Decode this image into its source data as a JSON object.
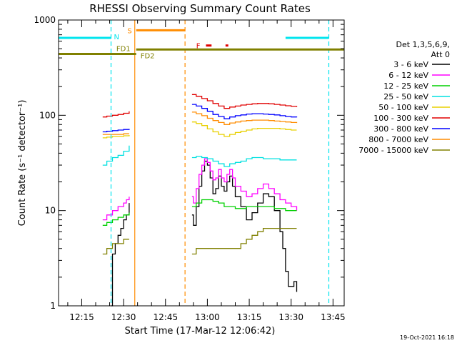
{
  "colors": {
    "background": "#ffffff",
    "axis": "#000000",
    "cyan": "#00e5ee",
    "orange": "#ff8c00",
    "olive": "#808000",
    "red": "#e00000",
    "e1": "#000000",
    "e2": "#ff00ff",
    "e3": "#00d000",
    "e4": "#00e0e0",
    "e5": "#e8d000",
    "e6": "#e00000",
    "e7": "#0000ff",
    "e8": "#ff8c00",
    "e9": "#808000"
  },
  "chart_data": {
    "type": "line",
    "title": "RHESSI Observing Summary Count Rates",
    "xlabel": "Start Time (17-Mar-12 12:06:42)",
    "ylabel": "Count Rate (s⁻¹ detector⁻¹)",
    "footer": "19-Oct-2021 16:18",
    "x_range": [
      "12:06:42",
      "13:49:00"
    ],
    "ylim": [
      1,
      1000
    ],
    "y_scale": "log",
    "x_ticks": [
      "12:15",
      "12:30",
      "12:45",
      "13:00",
      "13:15",
      "13:30",
      "13:45"
    ],
    "y_ticks": [
      {
        "value": 1,
        "label": "1"
      },
      {
        "value": 10,
        "label": "10"
      },
      {
        "value": 100,
        "label": "100"
      },
      {
        "value": 1000,
        "label": "1000"
      }
    ],
    "legend": {
      "position": "right",
      "header_line1": "Det 1,3,5,6,9,",
      "header_line2": "Att 0",
      "entries": [
        {
          "label": "3 - 6 keV",
          "color": "#000000"
        },
        {
          "label": "6 - 12 keV",
          "color": "#ff00ff"
        },
        {
          "label": "12 - 25 keV",
          "color": "#00d000"
        },
        {
          "label": "25 - 50 keV",
          "color": "#00e0e0"
        },
        {
          "label": "50 - 100 keV",
          "color": "#e8d000"
        },
        {
          "label": "100 - 300 keV",
          "color": "#e00000"
        },
        {
          "label": "300 - 800 keV",
          "color": "#0000ff"
        },
        {
          "label": "800 - 7000 keV",
          "color": "#ff8c00"
        },
        {
          "label": "7000 - 15000 keV",
          "color": "#808000"
        }
      ]
    },
    "flags": [
      {
        "label": "N",
        "color": "#00e5ee",
        "segments": [
          [
            "12:06:42",
            "12:25:30"
          ],
          [
            "13:28:00",
            "13:43:30"
          ]
        ],
        "value": 650
      },
      {
        "label": "S",
        "color": "#ff8c00",
        "segments": [
          [
            "12:34:30",
            "12:52:00"
          ]
        ],
        "value": 780
      },
      {
        "label": "F",
        "color": "#e00000",
        "segments": [
          [
            "12:59:30",
            "13:01:30"
          ],
          [
            "13:06:30",
            "13:07:30"
          ]
        ],
        "value": 540
      },
      {
        "label": "FD1",
        "color": "#808000",
        "segments": [
          [
            "12:06:42",
            "12:34:30"
          ]
        ],
        "value": 440
      },
      {
        "label": "FD2",
        "color": "#808000",
        "segments": [
          [
            "12:34:30",
            "13:49:00"
          ]
        ],
        "value": 490
      }
    ],
    "markers": [
      {
        "time": "12:25:30",
        "color": "#00e5ee",
        "style": "dashed"
      },
      {
        "time": "12:34:00",
        "color": "#ff8c00",
        "style": "solid"
      },
      {
        "time": "12:52:00",
        "color": "#ff8c00",
        "style": "dashed"
      },
      {
        "time": "13:43:30",
        "color": "#00e5ee",
        "style": "dashed"
      }
    ],
    "series": [
      {
        "name": "3 - 6 keV",
        "color": "#000000",
        "segments": [
          {
            "x": [
              "12:25:30",
              "12:26:00",
              "12:27:00",
              "12:28:00",
              "12:29:00",
              "12:30:00",
              "12:31:00",
              "12:32:00"
            ],
            "y": [
              1.0,
              3.5,
              4.5,
              5.5,
              6.5,
              8.0,
              9.0,
              12.0
            ]
          },
          {
            "x": [
              "12:54:30",
              "12:55:00",
              "12:56:00",
              "12:57:00",
              "12:58:00",
              "12:59:00",
              "13:00:00",
              "13:01:00",
              "13:02:00",
              "13:03:00",
              "13:04:00",
              "13:05:00",
              "13:06:00",
              "13:07:00",
              "13:08:00",
              "13:09:00",
              "13:10:00",
              "13:12:00",
              "13:14:00",
              "13:16:00",
              "13:18:00",
              "13:20:00",
              "13:22:00",
              "13:24:00",
              "13:26:00",
              "13:27:00",
              "13:28:00",
              "13:29:00",
              "13:30:00",
              "13:31:00",
              "13:32:00"
            ],
            "y": [
              9.0,
              7.0,
              11.0,
              18.0,
              26.0,
              33.0,
              30.0,
              22.0,
              15.0,
              17.0,
              23.0,
              18.0,
              16.0,
              20.0,
              23.0,
              18.0,
              14.0,
              11.0,
              8.0,
              9.5,
              12.0,
              15.0,
              14.0,
              10.0,
              6.0,
              4.0,
              2.3,
              1.6,
              1.6,
              1.8,
              1.4
            ]
          }
        ]
      },
      {
        "name": "6 - 12 keV",
        "color": "#ff00ff",
        "segments": [
          {
            "x": [
              "12:22:30",
              "12:24:00",
              "12:26:00",
              "12:28:00",
              "12:30:00",
              "12:31:00",
              "12:32:00"
            ],
            "y": [
              8.0,
              9.0,
              10.0,
              11.0,
              12.0,
              13.0,
              14.0
            ]
          },
          {
            "x": [
              "12:54:30",
              "12:55:00",
              "12:56:00",
              "12:57:00",
              "12:58:00",
              "12:59:00",
              "13:00:00",
              "13:01:00",
              "13:02:00",
              "13:03:00",
              "13:04:00",
              "13:05:00",
              "13:06:00",
              "13:07:00",
              "13:08:00",
              "13:09:00",
              "13:10:00",
              "13:12:00",
              "13:14:00",
              "13:16:00",
              "13:18:00",
              "13:20:00",
              "13:22:00",
              "13:24:00",
              "13:26:00",
              "13:28:00",
              "13:30:00",
              "13:32:00"
            ],
            "y": [
              14.0,
              12.0,
              17.0,
              24.0,
              30.0,
              35.0,
              32.0,
              26.0,
              21.0,
              22.0,
              27.0,
              22.0,
              20.0,
              24.0,
              27.0,
              22.0,
              18.0,
              16.0,
              14.0,
              15.0,
              17.0,
              19.0,
              17.0,
              15.0,
              13.0,
              12.0,
              11.0,
              10.0
            ]
          }
        ]
      },
      {
        "name": "12 - 25 keV",
        "color": "#00d000",
        "segments": [
          {
            "x": [
              "12:22:30",
              "12:24:00",
              "12:26:00",
              "12:28:00",
              "12:30:00",
              "12:32:00"
            ],
            "y": [
              7.0,
              7.5,
              8.0,
              8.5,
              9.0,
              9.5
            ]
          },
          {
            "x": [
              "12:54:30",
              "12:56:00",
              "12:58:00",
              "13:00:00",
              "13:02:00",
              "13:04:00",
              "13:06:00",
              "13:08:00",
              "13:10:00",
              "13:12:00",
              "13:14:00",
              "13:16:00",
              "13:18:00",
              "13:20:00",
              "13:22:00",
              "13:24:00",
              "13:26:00",
              "13:28:00",
              "13:30:00",
              "13:32:00"
            ],
            "y": [
              11.0,
              12.0,
              13.0,
              13.0,
              12.5,
              12.0,
              11.0,
              11.0,
              10.5,
              10.5,
              11.0,
              11.0,
              11.0,
              11.0,
              11.0,
              10.5,
              10.5,
              10.0,
              10.0,
              10.0
            ]
          }
        ]
      },
      {
        "name": "25 - 50 keV",
        "color": "#00e0e0",
        "segments": [
          {
            "x": [
              "12:22:30",
              "12:24:00",
              "12:26:00",
              "12:28:00",
              "12:30:00",
              "12:32:00"
            ],
            "y": [
              30.0,
              33.0,
              36.0,
              38.0,
              42.0,
              48.0
            ]
          },
          {
            "x": [
              "12:54:30",
              "12:56:00",
              "12:58:00",
              "13:00:00",
              "13:02:00",
              "13:04:00",
              "13:06:00",
              "13:08:00",
              "13:10:00",
              "13:12:00",
              "13:14:00",
              "13:16:00",
              "13:18:00",
              "13:20:00",
              "13:22:00",
              "13:24:00",
              "13:26:00",
              "13:28:00",
              "13:30:00",
              "13:32:00"
            ],
            "y": [
              36.0,
              37.0,
              36.0,
              35.0,
              33.0,
              31.0,
              29.0,
              31.0,
              32.0,
              33.0,
              35.0,
              36.0,
              36.0,
              35.0,
              35.0,
              35.0,
              34.0,
              34.0,
              34.0,
              34.0
            ]
          }
        ]
      },
      {
        "name": "50 - 100 keV",
        "color": "#e8d000",
        "segments": [
          {
            "x": [
              "12:22:30",
              "12:24:00",
              "12:26:00",
              "12:28:00",
              "12:30:00",
              "12:32:00"
            ],
            "y": [
              58.0,
              59.0,
              60.0,
              60.0,
              61.0,
              62.0
            ]
          },
          {
            "x": [
              "12:54:30",
              "12:56:00",
              "12:58:00",
              "13:00:00",
              "13:02:00",
              "13:04:00",
              "13:06:00",
              "13:08:00",
              "13:10:00",
              "13:12:00",
              "13:14:00",
              "13:16:00",
              "13:18:00",
              "13:20:00",
              "13:22:00",
              "13:24:00",
              "13:26:00",
              "13:28:00",
              "13:30:00",
              "13:32:00"
            ],
            "y": [
              85.0,
              82.0,
              78.0,
              72.0,
              67.0,
              63.0,
              60.0,
              63.0,
              66.0,
              68.0,
              70.0,
              72.0,
              73.0,
              73.0,
              73.0,
              73.0,
              72.0,
              71.0,
              70.0,
              70.0
            ]
          }
        ]
      },
      {
        "name": "100 - 300 keV",
        "color": "#e00000",
        "segments": [
          {
            "x": [
              "12:22:30",
              "12:24:00",
              "12:26:00",
              "12:28:00",
              "12:30:00",
              "12:32:00"
            ],
            "y": [
              96.0,
              98.0,
              100.0,
              102.0,
              105.0,
              110.0
            ]
          },
          {
            "x": [
              "12:54:30",
              "12:56:00",
              "12:58:00",
              "13:00:00",
              "13:02:00",
              "13:04:00",
              "13:06:00",
              "13:08:00",
              "13:10:00",
              "13:12:00",
              "13:14:00",
              "13:16:00",
              "13:18:00",
              "13:20:00",
              "13:22:00",
              "13:24:00",
              "13:26:00",
              "13:28:00",
              "13:30:00",
              "13:32:00"
            ],
            "y": [
              165.0,
              158.0,
              150.0,
              142.0,
              133.0,
              125.0,
              118.0,
              122.0,
              125.0,
              128.0,
              130.0,
              132.0,
              133.0,
              133.0,
              132.0,
              130.0,
              128.0,
              126.0,
              124.0,
              122.0
            ]
          }
        ]
      },
      {
        "name": "300 - 800 keV",
        "color": "#0000ff",
        "segments": [
          {
            "x": [
              "12:22:30",
              "12:24:00",
              "12:26:00",
              "12:28:00",
              "12:30:00",
              "12:32:00"
            ],
            "y": [
              67.0,
              68.0,
              69.0,
              70.0,
              71.0,
              72.0
            ]
          },
          {
            "x": [
              "12:54:30",
              "12:56:00",
              "12:58:00",
              "13:00:00",
              "13:02:00",
              "13:04:00",
              "13:06:00",
              "13:08:00",
              "13:10:00",
              "13:12:00",
              "13:14:00",
              "13:16:00",
              "13:18:00",
              "13:20:00",
              "13:22:00",
              "13:24:00",
              "13:26:00",
              "13:28:00",
              "13:30:00",
              "13:32:00"
            ],
            "y": [
              130.0,
              125.0,
              118.0,
              110.0,
              102.0,
              97.0,
              92.0,
              96.0,
              99.0,
              101.0,
              103.0,
              104.0,
              104.0,
              103.0,
              102.0,
              101.0,
              99.0,
              97.0,
              96.0,
              95.0
            ]
          }
        ]
      },
      {
        "name": "800 - 7000 keV",
        "color": "#ff8c00",
        "segments": [
          {
            "x": [
              "12:22:30",
              "12:24:00",
              "12:26:00",
              "12:28:00",
              "12:30:00",
              "12:32:00"
            ],
            "y": [
              63.0,
              63.0,
              63.0,
              63.0,
              64.0,
              64.0
            ]
          },
          {
            "x": [
              "12:54:30",
              "12:56:00",
              "12:58:00",
              "13:00:00",
              "13:02:00",
              "13:04:00",
              "13:06:00",
              "13:08:00",
              "13:10:00",
              "13:12:00",
              "13:14:00",
              "13:16:00",
              "13:18:00",
              "13:20:00",
              "13:22:00",
              "13:24:00",
              "13:26:00",
              "13:28:00",
              "13:30:00",
              "13:32:00"
            ],
            "y": [
              108.0,
              104.0,
              99.0,
              93.0,
              88.0,
              84.0,
              80.0,
              83.0,
              85.0,
              87.0,
              88.0,
              89.0,
              89.0,
              89.0,
              88.0,
              87.0,
              86.0,
              85.0,
              84.0,
              83.0
            ]
          }
        ]
      },
      {
        "name": "7000 - 15000 keV",
        "color": "#808000",
        "segments": [
          {
            "x": [
              "12:22:30",
              "12:24:00",
              "12:26:00",
              "12:28:00",
              "12:30:00",
              "12:32:00"
            ],
            "y": [
              3.5,
              4.0,
              4.5,
              4.5,
              5.0,
              5.0
            ]
          },
          {
            "x": [
              "12:54:30",
              "12:56:00",
              "12:58:00",
              "13:00:00",
              "13:02:00",
              "13:04:00",
              "13:06:00",
              "13:08:00",
              "13:10:00",
              "13:12:00",
              "13:14:00",
              "13:16:00",
              "13:18:00",
              "13:20:00",
              "13:22:00",
              "13:24:00",
              "13:26:00",
              "13:28:00",
              "13:30:00",
              "13:32:00"
            ],
            "y": [
              3.5,
              4.0,
              4.0,
              4.0,
              4.0,
              4.0,
              4.0,
              4.0,
              4.0,
              4.5,
              5.0,
              5.5,
              6.0,
              6.5,
              6.5,
              6.5,
              6.5,
              6.5,
              6.5,
              6.5
            ]
          }
        ]
      }
    ]
  }
}
